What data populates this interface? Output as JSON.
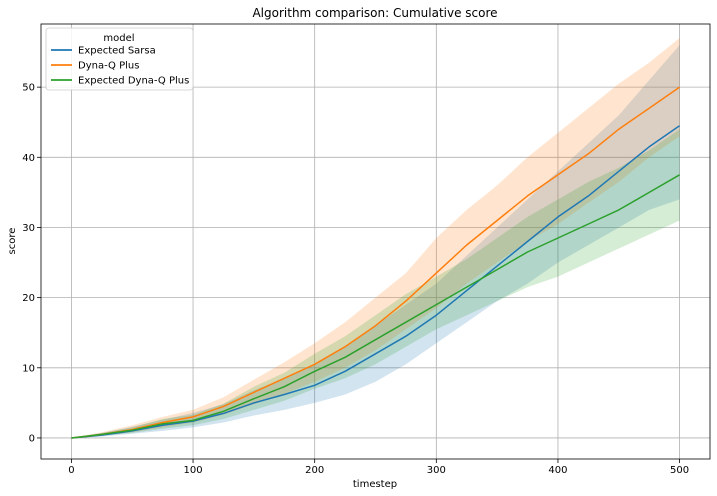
{
  "chart_data": {
    "type": "line",
    "title": "Algorithm comparison: Cumulative score",
    "xlabel": "timestep",
    "ylabel": "score",
    "xlim": [
      -25,
      525
    ],
    "ylim": [
      -3,
      59
    ],
    "xticks": [
      0,
      100,
      200,
      300,
      400,
      500
    ],
    "yticks": [
      0,
      10,
      20,
      30,
      40,
      50
    ],
    "grid": true,
    "legend": {
      "title": "model",
      "position": "top-left"
    },
    "x": [
      0,
      25,
      50,
      75,
      100,
      125,
      150,
      175,
      200,
      225,
      250,
      275,
      300,
      325,
      350,
      375,
      400,
      425,
      450,
      475,
      500
    ],
    "series": [
      {
        "name": "Expected Sarsa",
        "color": "#1f77b4",
        "values": [
          0,
          0.4,
          1.0,
          1.8,
          2.4,
          3.5,
          5.0,
          6.2,
          7.5,
          9.5,
          12.0,
          14.5,
          17.5,
          21.0,
          24.5,
          28.0,
          31.5,
          34.5,
          38.0,
          41.5,
          44.5
        ],
        "lower": [
          0,
          0.2,
          0.6,
          1.0,
          1.5,
          2.2,
          3.2,
          4.0,
          5.0,
          6.2,
          8.0,
          10.5,
          13.5,
          16.5,
          19.5,
          22.0,
          25.0,
          27.5,
          30.0,
          32.5,
          34.0
        ],
        "upper": [
          0,
          0.7,
          1.6,
          2.6,
          3.6,
          4.8,
          6.8,
          8.5,
          10.5,
          13.0,
          16.0,
          19.0,
          22.0,
          26.0,
          30.0,
          34.0,
          38.0,
          42.0,
          46.0,
          51.0,
          56.0
        ]
      },
      {
        "name": "Dyna-Q Plus",
        "color": "#ff7f0e",
        "values": [
          0,
          0.5,
          1.2,
          2.2,
          3.0,
          4.5,
          6.5,
          8.5,
          10.5,
          13.0,
          16.0,
          19.5,
          23.5,
          27.5,
          31.0,
          34.5,
          37.5,
          40.5,
          44.0,
          47.0,
          50.0
        ],
        "lower": [
          0,
          0.3,
          0.8,
          1.5,
          2.2,
          3.3,
          4.8,
          6.3,
          8.0,
          10.0,
          12.5,
          15.5,
          18.5,
          22.0,
          25.0,
          28.0,
          30.5,
          33.5,
          36.5,
          40.0,
          43.0
        ],
        "upper": [
          0,
          0.8,
          1.8,
          3.0,
          4.0,
          5.8,
          8.3,
          10.8,
          13.5,
          16.5,
          20.0,
          23.5,
          28.5,
          32.5,
          36.0,
          40.0,
          43.5,
          47.0,
          50.5,
          53.5,
          57.0
        ]
      },
      {
        "name": "Expected Dyna-Q Plus",
        "color": "#2ca02c",
        "values": [
          0,
          0.5,
          1.1,
          2.0,
          2.5,
          3.8,
          5.6,
          7.3,
          9.5,
          11.5,
          14.0,
          16.5,
          19.0,
          21.5,
          24.0,
          26.5,
          28.5,
          30.5,
          32.5,
          35.0,
          37.5
        ],
        "lower": [
          0,
          0.3,
          0.7,
          1.3,
          1.8,
          2.7,
          4.0,
          5.3,
          7.0,
          8.5,
          10.5,
          13.0,
          15.5,
          17.5,
          19.5,
          21.5,
          23.0,
          25.0,
          27.0,
          29.0,
          31.0
        ],
        "upper": [
          0,
          0.7,
          1.5,
          2.7,
          3.3,
          4.9,
          7.3,
          9.3,
          12.0,
          14.5,
          17.5,
          20.5,
          23.0,
          25.5,
          28.5,
          31.5,
          34.0,
          36.5,
          38.5,
          41.0,
          44.0
        ]
      }
    ]
  }
}
